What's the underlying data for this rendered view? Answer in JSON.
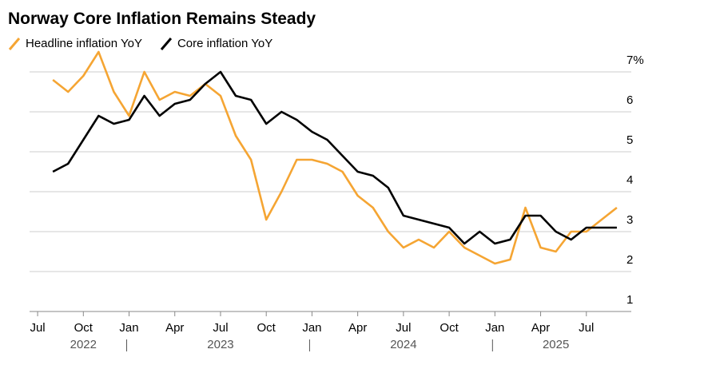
{
  "chart_data": {
    "type": "line",
    "title": "Norway Core Inflation Remains Steady",
    "x": [
      "2022-08",
      "2022-09",
      "2022-10",
      "2022-11",
      "2022-12",
      "2023-01",
      "2023-02",
      "2023-03",
      "2023-04",
      "2023-05",
      "2023-06",
      "2023-07",
      "2023-08",
      "2023-09",
      "2023-10",
      "2023-11",
      "2023-12",
      "2024-01",
      "2024-02",
      "2024-03",
      "2024-04",
      "2024-05",
      "2024-06",
      "2024-07",
      "2024-08",
      "2024-09",
      "2024-10",
      "2024-11",
      "2024-12",
      "2025-01",
      "2025-02",
      "2025-03",
      "2025-04",
      "2025-05",
      "2025-06",
      "2025-07",
      "2025-08",
      "2025-09"
    ],
    "series": [
      {
        "name": "Headline inflation YoY",
        "color": "#f5a533",
        "values": [
          6.8,
          6.5,
          6.9,
          7.5,
          6.5,
          5.9,
          7.0,
          6.3,
          6.5,
          6.4,
          6.7,
          6.4,
          5.4,
          4.8,
          3.3,
          4.0,
          4.8,
          4.8,
          4.7,
          4.5,
          3.9,
          3.6,
          3.0,
          2.6,
          2.8,
          2.6,
          3.0,
          2.6,
          2.4,
          2.2,
          2.3,
          3.6,
          2.6,
          2.5,
          3.0,
          3.0,
          3.3,
          3.6
        ]
      },
      {
        "name": "Core inflation YoY",
        "color": "#000000",
        "values": [
          4.5,
          4.7,
          5.3,
          5.9,
          5.7,
          5.8,
          6.4,
          5.9,
          6.2,
          6.3,
          6.7,
          7.0,
          6.4,
          6.3,
          5.7,
          6.0,
          5.8,
          5.5,
          5.3,
          4.9,
          4.5,
          4.4,
          4.1,
          3.4,
          3.3,
          3.2,
          3.1,
          2.7,
          3.0,
          2.7,
          2.8,
          3.4,
          3.4,
          3.0,
          2.8,
          3.1,
          3.1,
          3.1
        ]
      }
    ],
    "xlim": [
      "2022-06",
      "2025-10"
    ],
    "xticks": [
      {
        "value": "2022-07",
        "label": "Jul"
      },
      {
        "value": "2022-10",
        "label": "Oct"
      },
      {
        "value": "2023-01",
        "label": "Jan"
      },
      {
        "value": "2023-04",
        "label": "Apr"
      },
      {
        "value": "2023-07",
        "label": "Jul"
      },
      {
        "value": "2023-10",
        "label": "Oct"
      },
      {
        "value": "2024-01",
        "label": "Jan"
      },
      {
        "value": "2024-04",
        "label": "Apr"
      },
      {
        "value": "2024-07",
        "label": "Jul"
      },
      {
        "value": "2024-10",
        "label": "Oct"
      },
      {
        "value": "2025-01",
        "label": "Jan"
      },
      {
        "value": "2025-04",
        "label": "Apr"
      },
      {
        "value": "2025-07",
        "label": "Jul"
      }
    ],
    "year_labels": [
      {
        "value": "2022-10",
        "label": "2022"
      },
      {
        "value": "2023-07",
        "label": "2023"
      },
      {
        "value": "2024-07",
        "label": "2024"
      },
      {
        "value": "2025-05",
        "label": "2025"
      }
    ],
    "ylim": [
      1,
      7.6
    ],
    "yticks": [
      1,
      2,
      3,
      4,
      5,
      6,
      {
        "value": 7,
        "label": "7%"
      }
    ],
    "grid": true
  }
}
